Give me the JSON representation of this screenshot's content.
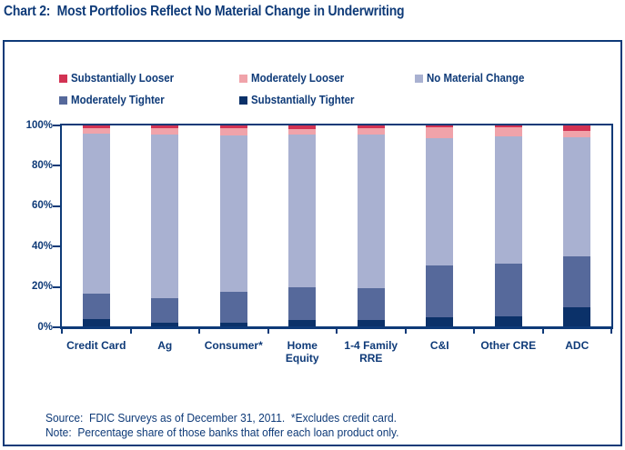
{
  "title": "Chart 2:  Most Portfolios Reflect No Material Change in Underwriting",
  "colors": {
    "navy_text": "#0e3a78",
    "substantially_looser": "#d23253",
    "moderately_looser": "#f0a3aa",
    "no_material_change": "#a9b1d1",
    "moderately_tighter": "#56699b",
    "substantially_tighter": "#0b3169"
  },
  "legend": {
    "items": [
      {
        "label": "Substantially Looser",
        "color": "#d23253",
        "row": 1
      },
      {
        "label": "Moderately Looser",
        "color": "#f0a3aa",
        "row": 1
      },
      {
        "label": "No Material Change",
        "color": "#a9b1d1",
        "row": 1
      },
      {
        "label": "Moderately Tighter",
        "color": "#56699b",
        "row": 2
      },
      {
        "label": "Substantially Tighter",
        "color": "#0b3169",
        "row": 2
      }
    ]
  },
  "chart_data": {
    "type": "bar",
    "stacked": true,
    "title": "Chart 2:  Most Portfolios Reflect No Material Change in Underwriting",
    "xlabel": "",
    "ylabel": "",
    "ylim": [
      0,
      100
    ],
    "grid": false,
    "legend_position": "top",
    "y_ticks": [
      {
        "label": "100%",
        "value": 100
      },
      {
        "label": "80%",
        "value": 80
      },
      {
        "label": "60%",
        "value": 60
      },
      {
        "label": "40%",
        "value": 40
      },
      {
        "label": "20%",
        "value": 20
      },
      {
        "label": "0%",
        "value": 0
      }
    ],
    "categories": [
      "Credit Card",
      "Ag",
      "Consumer*",
      "Home\nEquity",
      "1-4 Family\nRRE",
      "C&I",
      "Other CRE",
      "ADC"
    ],
    "series_order_note": "bottom of stack to top of stack, values are percent of banks",
    "series": [
      {
        "name": "Substantially Tighter",
        "color": "#0b3169",
        "values": [
          3.5,
          2,
          2,
          3,
          3,
          4.5,
          5,
          9.5
        ]
      },
      {
        "name": "Moderately Tighter",
        "color": "#56699b",
        "values": [
          13,
          12,
          15,
          16.5,
          16,
          26,
          26,
          25.5
        ]
      },
      {
        "name": "No Material Change",
        "color": "#a9b1d1",
        "values": [
          79.5,
          81.5,
          78,
          76,
          76.5,
          63,
          63.5,
          59
        ]
      },
      {
        "name": "Moderately Looser",
        "color": "#f0a3aa",
        "values": [
          2.5,
          3,
          3.5,
          2.5,
          3,
          5.5,
          4.5,
          3.5
        ]
      },
      {
        "name": "Substantially Looser",
        "color": "#d23253",
        "values": [
          1.5,
          1.5,
          1.5,
          2,
          1.5,
          1,
          1,
          2.5
        ]
      }
    ]
  },
  "notes": {
    "source": "Source:  FDIC Surveys as of December 31, 2011.  *Excludes credit card.",
    "note": "Note:  Percentage share of those banks that offer each loan product only."
  }
}
